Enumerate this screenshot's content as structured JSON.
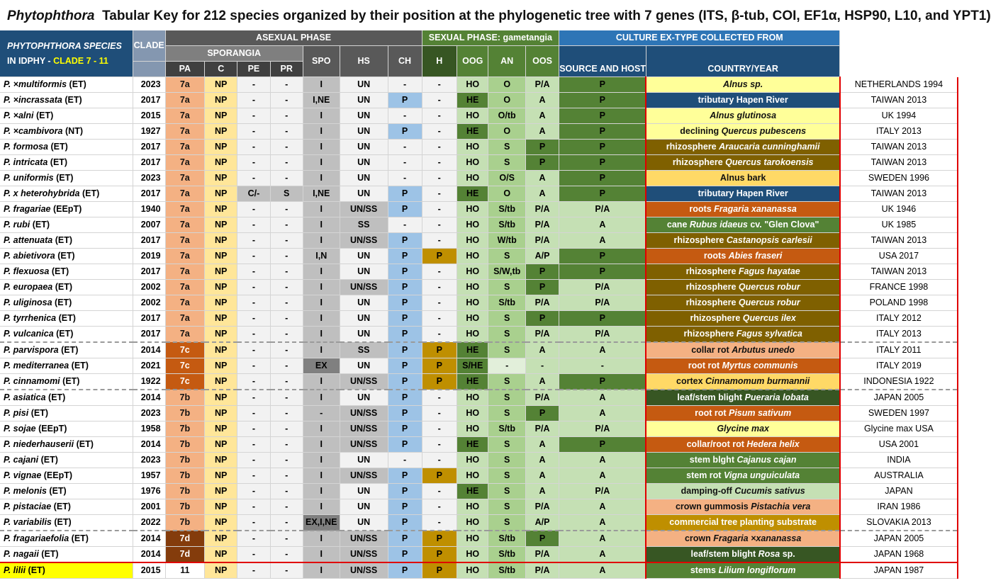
{
  "title": {
    "genus": "Phytophthora",
    "text": "Tabular Key for 212 species organized by their position at the phylogenetic tree with 7 genes (ITS, β-tub, COI, EF1α, HSP90, L10, and YPT1)"
  },
  "headers": {
    "species_line1": "PHYTOPHTHORA SPECIES",
    "species_line2": "IN IDPHY -",
    "species_clade": "CLADE 7 - 11",
    "clade": "CLADE",
    "asexual": "ASEXUAL PHASE",
    "sporangia": "SPORANGIA",
    "pa": "PA",
    "c": "C",
    "pe": "PE",
    "pr": "PR",
    "spo": "SPO",
    "hs": "HS",
    "ch": "CH",
    "sexual": "SEXUAL PHASE: gametangia",
    "h": "H",
    "oog": "OOG",
    "an": "AN",
    "oos": "OOS",
    "culture": "CULTURE EX-TYPE COLLECTED FROM",
    "source": "SOURCE AND HOST",
    "country": "COUNTRY/YEAR"
  },
  "colors": {
    "header_blue": "#1f4e79",
    "header_gray_dark": "#595959",
    "header_gray_mid": "#7f7f7f",
    "header_green": "#548235",
    "header_culture": "#2e75b6",
    "clade_7a": "#f4b183",
    "clade_7c": "#c55a11",
    "clade_7b": "#f4b183",
    "clade_7d": "#843c0c",
    "pa_col": "#ffe699",
    "hs_blue": "#9dc3e6",
    "ch_gold": "#bf8f00",
    "ho_light": "#c5e0b4",
    "he_dark": "#548235",
    "highlight": "#ffff00"
  },
  "rows": [
    {
      "name": "P. ×multiformis",
      "suf": "(ET)",
      "year": "2023",
      "clade": "7a",
      "pa": "NP",
      "c": "-",
      "pe": "-",
      "pr": "I",
      "spo": "UN",
      "hs": "-",
      "ch": "-",
      "h": "HO",
      "oog": "O",
      "an": "P/A",
      "oos": "P",
      "src_pre": "",
      "src_host": "Alnus sp.",
      "src_post": "",
      "country": "NETHERLANDS 1994"
    },
    {
      "name": "P. ×incrassata",
      "suf": "(ET)",
      "year": "2017",
      "clade": "7a",
      "pa": "NP",
      "c": "-",
      "pe": "-",
      "pr": "I,NE",
      "spo": "UN",
      "hs": "P",
      "ch": "-",
      "h": "HE",
      "oog": "O",
      "an": "A",
      "oos": "P",
      "src_pre": "tributary Hapen River",
      "src_host": "",
      "src_post": "",
      "country": "TAIWAN 2013"
    },
    {
      "name": "P. ×alni",
      "suf": "(ET)",
      "year": "2015",
      "clade": "7a",
      "pa": "NP",
      "c": "-",
      "pe": "-",
      "pr": "I",
      "spo": "UN",
      "hs": "-",
      "ch": "-",
      "h": "HO",
      "oog": "O/tb",
      "an": "A",
      "oos": "P",
      "src_pre": "",
      "src_host": "Alnus glutinosa",
      "src_post": "",
      "country": "UK 1994"
    },
    {
      "name": "P. ×cambivora",
      "suf": "(NT)",
      "year": "1927",
      "clade": "7a",
      "pa": "NP",
      "c": "-",
      "pe": "-",
      "pr": "I",
      "spo": "UN",
      "hs": "P",
      "ch": "-",
      "h": "HE",
      "oog": "O",
      "an": "A",
      "oos": "P",
      "src_pre": "declining ",
      "src_host": "Quercus pubescens",
      "src_post": "",
      "country": "ITALY 2013"
    },
    {
      "name": "P. formosa",
      "suf": "(ET)",
      "year": "2017",
      "clade": "7a",
      "pa": "NP",
      "c": "-",
      "pe": "-",
      "pr": "I",
      "spo": "UN",
      "hs": "-",
      "ch": "-",
      "h": "HO",
      "oog": "S",
      "an": "P",
      "oos": "P",
      "src_pre": "rhizosphere ",
      "src_host": "Araucaria cunninghamii",
      "src_post": "",
      "country": "TAIWAN 2013"
    },
    {
      "name": "P. intricata",
      "suf": "(ET)",
      "year": "2017",
      "clade": "7a",
      "pa": "NP",
      "c": "-",
      "pe": "-",
      "pr": "I",
      "spo": "UN",
      "hs": "-",
      "ch": "-",
      "h": "HO",
      "oog": "S",
      "an": "P",
      "oos": "P",
      "src_pre": "rhizosphere ",
      "src_host": "Quercus tarokoensis",
      "src_post": "",
      "country": "TAIWAN 2013"
    },
    {
      "name": "P. uniformis",
      "suf": "(ET)",
      "year": "2023",
      "clade": "7a",
      "pa": "NP",
      "c": "-",
      "pe": "-",
      "pr": "I",
      "spo": "UN",
      "hs": "-",
      "ch": "-",
      "h": "HO",
      "oog": "O/S",
      "an": "A",
      "oos": "P",
      "src_pre": "Alnus bark",
      "src_host": "",
      "src_post": "",
      "country": "SWEDEN 1996"
    },
    {
      "name": "P. x heterohybrida",
      "suf": "(ET)",
      "year": "2017",
      "clade": "7a",
      "pa": "NP",
      "c": "C/-",
      "pe": "S",
      "pr": "I,NE",
      "spo": "UN",
      "hs": "P",
      "ch": "-",
      "h": "HE",
      "oog": "O",
      "an": "A",
      "oos": "P",
      "src_pre": "tributary Hapen River",
      "src_host": "",
      "src_post": "",
      "country": "TAIWAN 2013"
    },
    {
      "name": "P. fragariae",
      "suf": "(EEpT)",
      "year": "1940",
      "clade": "7a",
      "pa": "NP",
      "c": "-",
      "pe": "-",
      "pr": "I",
      "spo": "UN/SS",
      "hs": "P",
      "ch": "-",
      "h": "HO",
      "oog": "S/tb",
      "an": "P/A",
      "oos": "P/A",
      "src_pre": "roots ",
      "src_host": "Fragaria xananassa",
      "src_post": "",
      "country": "UK 1946"
    },
    {
      "name": "P. rubi",
      "suf": "(ET)",
      "year": "2007",
      "clade": "7a",
      "pa": "NP",
      "c": "-",
      "pe": "-",
      "pr": "I",
      "spo": "SS",
      "hs": "-",
      "ch": "-",
      "h": "HO",
      "oog": "S/tb",
      "an": "P/A",
      "oos": "A",
      "src_pre": "cane ",
      "src_host": "Rubus idaeus",
      "src_post": " cv. \"Glen Clova\"",
      "country": "UK 1985"
    },
    {
      "name": "P. attenuata",
      "suf": "(ET)",
      "year": "2017",
      "clade": "7a",
      "pa": "NP",
      "c": "-",
      "pe": "-",
      "pr": "I",
      "spo": "UN/SS",
      "hs": "P",
      "ch": "-",
      "h": "HO",
      "oog": "W/tb",
      "an": "P/A",
      "oos": "A",
      "src_pre": "rhizosphere ",
      "src_host": "Castanopsis carlesii",
      "src_post": "",
      "country": "TAIWAN 2013"
    },
    {
      "name": "P. abietivora",
      "suf": "(ET)",
      "year": "2019",
      "clade": "7a",
      "pa": "NP",
      "c": "-",
      "pe": "-",
      "pr": "I,N",
      "spo": "UN",
      "hs": "P",
      "ch": "P",
      "h": "HO",
      "oog": "S",
      "an": "A/P",
      "oos": "P",
      "src_pre": "roots ",
      "src_host": "Abies fraseri",
      "src_post": "",
      "country": "USA 2017"
    },
    {
      "name": "P. flexuosa",
      "suf": "(ET)",
      "year": "2017",
      "clade": "7a",
      "pa": "NP",
      "c": "-",
      "pe": "-",
      "pr": "I",
      "spo": "UN",
      "hs": "P",
      "ch": "-",
      "h": "HO",
      "oog": "S/W,tb",
      "an": "P",
      "oos": "P",
      "src_pre": "rhizosphere ",
      "src_host": "Fagus hayatae",
      "src_post": "",
      "country": "TAIWAN 2013"
    },
    {
      "name": "P. europaea",
      "suf": "(ET)",
      "year": "2002",
      "clade": "7a",
      "pa": "NP",
      "c": "-",
      "pe": "-",
      "pr": "I",
      "spo": "UN/SS",
      "hs": "P",
      "ch": "-",
      "h": "HO",
      "oog": "S",
      "an": "P",
      "oos": "P/A",
      "src_pre": "rhizosphere ",
      "src_host": "Quercus robur",
      "src_post": "",
      "country": "FRANCE 1998"
    },
    {
      "name": "P. uliginosa",
      "suf": "(ET)",
      "year": "2002",
      "clade": "7a",
      "pa": "NP",
      "c": "-",
      "pe": "-",
      "pr": "I",
      "spo": "UN",
      "hs": "P",
      "ch": "-",
      "h": "HO",
      "oog": "S/tb",
      "an": "P/A",
      "oos": "P/A",
      "src_pre": "rhizosphere ",
      "src_host": "Quercus robur",
      "src_post": "",
      "country": "POLAND 1998"
    },
    {
      "name": "P. tyrrhenica",
      "suf": "(ET)",
      "year": "2017",
      "clade": "7a",
      "pa": "NP",
      "c": "-",
      "pe": "-",
      "pr": "I",
      "spo": "UN",
      "hs": "P",
      "ch": "-",
      "h": "HO",
      "oog": "S",
      "an": "P",
      "oos": "P",
      "src_pre": "rhizosphere ",
      "src_host": "Quercus ilex",
      "src_post": "",
      "country": "ITALY 2012"
    },
    {
      "name": "P. vulcanica",
      "suf": "(ET)",
      "year": "2017",
      "clade": "7a",
      "pa": "NP",
      "c": "-",
      "pe": "-",
      "pr": "I",
      "spo": "UN",
      "hs": "P",
      "ch": "-",
      "h": "HO",
      "oog": "S",
      "an": "P/A",
      "oos": "P/A",
      "src_pre": "rhizosphere ",
      "src_host": "Fagus sylvatica",
      "src_post": "",
      "country": "ITALY 2013"
    },
    {
      "name": "P. parvispora",
      "suf": "(ET)",
      "year": "2014",
      "clade": "7c",
      "pa": "NP",
      "c": "-",
      "pe": "-",
      "pr": "I",
      "spo": "SS",
      "hs": "P",
      "ch": "P",
      "h": "HE",
      "oog": "S",
      "an": "A",
      "oos": "A",
      "src_pre": "collar rot ",
      "src_host": "Arbutus unedo",
      "src_post": "",
      "country": "ITALY 2011"
    },
    {
      "name": "P. mediterranea",
      "suf": "(ET)",
      "year": "2021",
      "clade": "7c",
      "pa": "NP",
      "c": "-",
      "pe": "-",
      "pr": "EX",
      "spo": "UN",
      "hs": "P",
      "ch": "P",
      "h": "S/HE",
      "oog": "-",
      "an": "-",
      "oos": "-",
      "src_pre": "root rot ",
      "src_host": "Myrtus communis",
      "src_post": "",
      "country": "ITALY 2019"
    },
    {
      "name": "P. cinnamomi",
      "suf": "(ET)",
      "year": "1922",
      "clade": "7c",
      "pa": "NP",
      "c": "-",
      "pe": "-",
      "pr": "I",
      "spo": "UN/SS",
      "hs": "P",
      "ch": "P",
      "h": "HE",
      "oog": "S",
      "an": "A",
      "oos": "P",
      "src_pre": "cortex ",
      "src_host": "Cinnamomum burmannii",
      "src_post": "",
      "country": "INDONESIA 1922"
    },
    {
      "name": "P. asiatica",
      "suf": "(ET)",
      "year": "2014",
      "clade": "7b",
      "pa": "NP",
      "c": "-",
      "pe": "-",
      "pr": "I",
      "spo": "UN",
      "hs": "P",
      "ch": "-",
      "h": "HO",
      "oog": "S",
      "an": "P/A",
      "oos": "A",
      "src_pre": "leaf/stem blight ",
      "src_host": "Pueraria lobata",
      "src_post": "",
      "country": "JAPAN 2005"
    },
    {
      "name": "P. pisi",
      "suf": "(ET)",
      "year": "2023",
      "clade": "7b",
      "pa": "NP",
      "c": "-",
      "pe": "-",
      "pr": "-",
      "spo": "UN/SS",
      "hs": "P",
      "ch": "-",
      "h": "HO",
      "oog": "S",
      "an": "P",
      "oos": "A",
      "src_pre": "root rot ",
      "src_host": "Pisum sativum",
      "src_post": "",
      "country": "SWEDEN 1997"
    },
    {
      "name": "P. sojae",
      "suf": "(EEpT)",
      "year": "1958",
      "clade": "7b",
      "pa": "NP",
      "c": "-",
      "pe": "-",
      "pr": "I",
      "spo": "UN/SS",
      "hs": "P",
      "ch": "-",
      "h": "HO",
      "oog": "S/tb",
      "an": "P/A",
      "oos": "P/A",
      "src_pre": "",
      "src_host": "Glycine max",
      "src_post": "",
      "country": "Glycine max USA"
    },
    {
      "name": "P. niederhauserii",
      "suf": "(ET)",
      "year": "2014",
      "clade": "7b",
      "pa": "NP",
      "c": "-",
      "pe": "-",
      "pr": "I",
      "spo": "UN/SS",
      "hs": "P",
      "ch": "-",
      "h": "HE",
      "oog": "S",
      "an": "A",
      "oos": "P",
      "src_pre": "collar/root rot ",
      "src_host": "Hedera helix",
      "src_post": "",
      "country": "USA 2001"
    },
    {
      "name": "P. cajani",
      "suf": "(ET)",
      "year": "2023",
      "clade": "7b",
      "pa": "NP",
      "c": "-",
      "pe": "-",
      "pr": "I",
      "spo": "UN",
      "hs": "-",
      "ch": "-",
      "h": "HO",
      "oog": "S",
      "an": "A",
      "oos": "A",
      "src_pre": "stem blght ",
      "src_host": "Cajanus cajan",
      "src_post": "",
      "country": "INDIA"
    },
    {
      "name": "P. vignae",
      "suf": "(EEpT)",
      "year": "1957",
      "clade": "7b",
      "pa": "NP",
      "c": "-",
      "pe": "-",
      "pr": "I",
      "spo": "UN/SS",
      "hs": "P",
      "ch": "P",
      "h": "HO",
      "oog": "S",
      "an": "A",
      "oos": "A",
      "src_pre": "stem rot ",
      "src_host": "Vigna unguiculata",
      "src_post": "",
      "country": "AUSTRALIA"
    },
    {
      "name": "P. melonis",
      "suf": "(ET)",
      "year": "1976",
      "clade": "7b",
      "pa": "NP",
      "c": "-",
      "pe": "-",
      "pr": "I",
      "spo": "UN",
      "hs": "P",
      "ch": "-",
      "h": "HE",
      "oog": "S",
      "an": "A",
      "oos": "P/A",
      "src_pre": "damping-off ",
      "src_host": "Cucumis sativus",
      "src_post": "",
      "country": "JAPAN"
    },
    {
      "name": "P. pistaciae",
      "suf": "(ET)",
      "year": "2001",
      "clade": "7b",
      "pa": "NP",
      "c": "-",
      "pe": "-",
      "pr": "I",
      "spo": "UN",
      "hs": "P",
      "ch": "-",
      "h": "HO",
      "oog": "S",
      "an": "P/A",
      "oos": "A",
      "src_pre": "crown gummosis ",
      "src_host": "Pistachia vera",
      "src_post": "",
      "country": "IRAN 1986"
    },
    {
      "name": "P. variabilis",
      "suf": "(ET)",
      "year": "2022",
      "clade": "7b",
      "pa": "NP",
      "c": "-",
      "pe": "-",
      "pr": "EX,I,NE",
      "spo": "UN",
      "hs": "P",
      "ch": "-",
      "h": "HO",
      "oog": "S",
      "an": "A/P",
      "oos": "A",
      "src_pre": "commercial tree planting substrate",
      "src_host": "",
      "src_post": "",
      "country": "SLOVAKIA 2013"
    },
    {
      "name": "P. fragariaefolia",
      "suf": "(ET)",
      "year": "2014",
      "clade": "7d",
      "pa": "NP",
      "c": "-",
      "pe": "-",
      "pr": "I",
      "spo": "UN/SS",
      "hs": "P",
      "ch": "P",
      "h": "HO",
      "oog": "S/tb",
      "an": "P",
      "oos": "A",
      "src_pre": "crown ",
      "src_host": "Fragaria ×xananassa",
      "src_post": "",
      "country": "JAPAN 2005"
    },
    {
      "name": "P. nagaii",
      "suf": "(ET)",
      "year": "2014",
      "clade": "7d",
      "pa": "NP",
      "c": "-",
      "pe": "-",
      "pr": "I",
      "spo": "UN/SS",
      "hs": "P",
      "ch": "P",
      "h": "HO",
      "oog": "S/tb",
      "an": "P/A",
      "oos": "A",
      "src_pre": "leaf/stem blight ",
      "src_host": "Rosa",
      "src_post": " sp.",
      "country": "JAPAN 1968"
    },
    {
      "name": "P. lilii",
      "suf": "(ET)",
      "year": "2015",
      "clade": "11",
      "pa": "NP",
      "c": "-",
      "pe": "-",
      "pr": "I",
      "spo": "UN/SS",
      "hs": "P",
      "ch": "P",
      "h": "HO",
      "oog": "S/tb",
      "an": "P/A",
      "oos": "A",
      "src_pre": "stems ",
      "src_host": "Lilium longiflorum",
      "src_post": "",
      "country": "JAPAN 1987"
    }
  ]
}
